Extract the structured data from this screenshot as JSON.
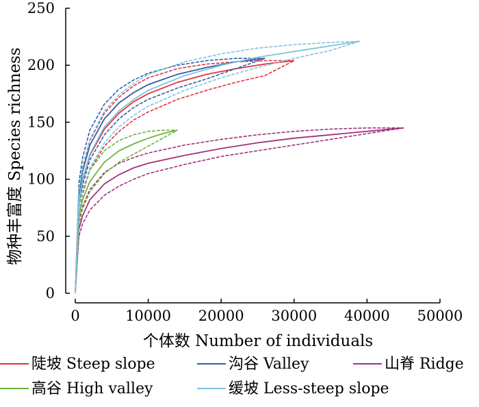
{
  "chart_data": {
    "type": "line",
    "title": "",
    "xlabel": "个体数 Number of individuals",
    "ylabel": "物种丰富度 Species richness",
    "xlim": [
      0,
      50000
    ],
    "ylim": [
      0,
      250
    ],
    "x_ticks": [
      0,
      10000,
      20000,
      30000,
      40000,
      50000
    ],
    "y_ticks": [
      0,
      50,
      100,
      150,
      200,
      250
    ],
    "grid": false,
    "legend_position": "bottom",
    "series": [
      {
        "name": "陡坡 Steep slope",
        "color": "#e2323a",
        "x": [
          0,
          500,
          1000,
          2000,
          4000,
          6000,
          8000,
          10000,
          14000,
          18000,
          22000,
          26000,
          30000
        ],
        "values": [
          0,
          79,
          99,
          121,
          144,
          158,
          168,
          175,
          185,
          192,
          197,
          201,
          204
        ],
        "lower": [
          0,
          68,
          87,
          108,
          129,
          142,
          152,
          159,
          170,
          178,
          185,
          191,
          204
        ],
        "upper": [
          0,
          90,
          111,
          134,
          158,
          172,
          182,
          189,
          197,
          201,
          203,
          204,
          204
        ]
      },
      {
        "name": "沟谷 Valley",
        "color": "#2f5ca8",
        "x": [
          0,
          500,
          1000,
          2000,
          4000,
          6000,
          8000,
          10000,
          14000,
          18000,
          22000,
          26000
        ],
        "values": [
          0,
          86,
          107,
          130,
          153,
          167,
          176,
          183,
          192,
          198,
          203,
          206
        ],
        "lower": [
          0,
          75,
          95,
          117,
          139,
          153,
          163,
          170,
          180,
          188,
          197,
          206
        ],
        "upper": [
          0,
          97,
          119,
          143,
          166,
          179,
          187,
          193,
          200,
          204,
          206,
          206
        ]
      },
      {
        "name": "山脊 Ridge",
        "color": "#a0327e",
        "x": [
          0,
          500,
          1000,
          2000,
          4000,
          6000,
          8000,
          10000,
          15000,
          20000,
          25000,
          30000,
          35000,
          40000,
          45000
        ],
        "values": [
          0,
          56,
          68,
          82,
          96,
          104,
          110,
          114,
          121,
          127,
          132,
          136,
          139,
          142,
          145
        ],
        "lower": [
          0,
          50,
          61,
          73,
          86,
          94,
          100,
          105,
          113,
          120,
          125,
          130,
          135,
          140,
          145
        ],
        "upper": [
          0,
          63,
          76,
          91,
          106,
          114,
          119,
          123,
          130,
          135,
          139,
          142,
          144,
          145,
          145
        ]
      },
      {
        "name": "高谷 High valley",
        "color": "#6cb33f",
        "x": [
          0,
          500,
          1000,
          2000,
          4000,
          6000,
          8000,
          10000,
          12000,
          14000
        ],
        "values": [
          0,
          67,
          82,
          98,
          115,
          125,
          131,
          136,
          140,
          143
        ],
        "lower": [
          0,
          60,
          74,
          89,
          105,
          115,
          122,
          129,
          136,
          143
        ],
        "upper": [
          0,
          75,
          91,
          108,
          125,
          134,
          139,
          142,
          143,
          143
        ]
      },
      {
        "name": "缓坡 Less-steep slope",
        "color": "#7fc3dc",
        "x": [
          0,
          500,
          1000,
          2000,
          4000,
          6000,
          8000,
          10000,
          15000,
          20000,
          25000,
          30000,
          35000,
          39000
        ],
        "values": [
          0,
          80,
          100,
          122,
          146,
          160,
          170,
          178,
          191,
          200,
          207,
          212,
          217,
          221
        ],
        "lower": [
          0,
          70,
          89,
          110,
          132,
          146,
          156,
          164,
          178,
          189,
          198,
          206,
          213,
          221
        ],
        "upper": [
          0,
          90,
          111,
          135,
          160,
          174,
          184,
          192,
          203,
          210,
          215,
          218,
          220,
          221
        ]
      }
    ]
  }
}
